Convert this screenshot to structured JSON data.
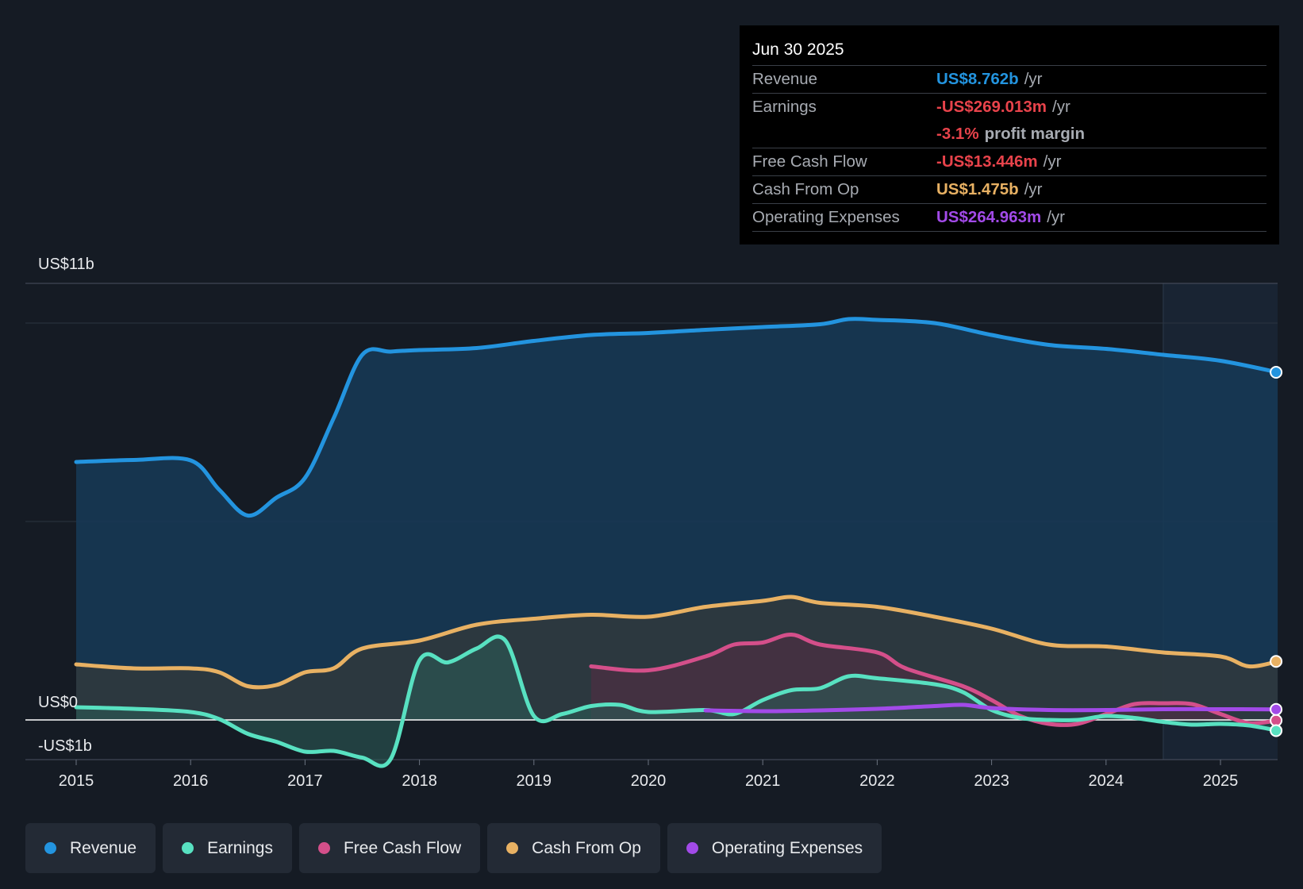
{
  "tooltip": {
    "date": "Jun 30 2025",
    "revenue_label": "Revenue",
    "revenue_value": "US$8.762b",
    "revenue_unit": "/yr",
    "earnings_label": "Earnings",
    "earnings_value": "-US$269.013m",
    "earnings_unit": "/yr",
    "margin_value": "-3.1%",
    "margin_unit": "profit margin",
    "fcf_label": "Free Cash Flow",
    "fcf_value": "-US$13.446m",
    "fcf_unit": "/yr",
    "cfo_label": "Cash From Op",
    "cfo_value": "US$1.475b",
    "cfo_unit": "/yr",
    "opex_label": "Operating Expenses",
    "opex_value": "US$264.963m",
    "opex_unit": "/yr"
  },
  "legend": [
    {
      "label": "Revenue",
      "color": "#2394df"
    },
    {
      "label": "Earnings",
      "color": "#58e1c1"
    },
    {
      "label": "Free Cash Flow",
      "color": "#d44f8a"
    },
    {
      "label": "Cash From Op",
      "color": "#e8b163"
    },
    {
      "label": "Operating Expenses",
      "color": "#a24ae8"
    }
  ],
  "chart_data": {
    "type": "area",
    "title": "",
    "x_unit": "year",
    "xlim": [
      2014.55,
      2025.5
    ],
    "ylim": [
      -1.0,
      11.0
    ],
    "y_top_label": "US$11b",
    "y_zero_label": "US$0",
    "y_bottom_label": "-US$1b",
    "gridlines": [
      10,
      5
    ],
    "forecast_start": 2024.5,
    "x_ticks": [
      {
        "x": 2015,
        "label": "2015"
      },
      {
        "x": 2016,
        "label": "2016"
      },
      {
        "x": 2017,
        "label": "2017"
      },
      {
        "x": 2018,
        "label": "2018"
      },
      {
        "x": 2019,
        "label": "2019"
      },
      {
        "x": 2020,
        "label": "2020"
      },
      {
        "x": 2021,
        "label": "2021"
      },
      {
        "x": 2022,
        "label": "2022"
      },
      {
        "x": 2023,
        "label": "2023"
      },
      {
        "x": 2024,
        "label": "2024"
      },
      {
        "x": 2025,
        "label": "2025"
      }
    ],
    "series": [
      {
        "name": "Revenue",
        "color": "#2394df",
        "fill": "#163957",
        "fill_opacity": 0.85,
        "points": [
          [
            2015,
            6.5
          ],
          [
            2015.5,
            6.55
          ],
          [
            2016,
            6.54
          ],
          [
            2016.25,
            5.8
          ],
          [
            2016.5,
            5.15
          ],
          [
            2016.75,
            5.6
          ],
          [
            2017,
            6.1
          ],
          [
            2017.25,
            7.6
          ],
          [
            2017.5,
            9.2
          ],
          [
            2017.75,
            9.28
          ],
          [
            2018,
            9.32
          ],
          [
            2018.5,
            9.37
          ],
          [
            2019,
            9.55
          ],
          [
            2019.5,
            9.7
          ],
          [
            2020,
            9.75
          ],
          [
            2020.5,
            9.83
          ],
          [
            2021,
            9.9
          ],
          [
            2021.5,
            9.97
          ],
          [
            2021.75,
            10.1
          ],
          [
            2022,
            10.08
          ],
          [
            2022.5,
            10.0
          ],
          [
            2023,
            9.7
          ],
          [
            2023.5,
            9.45
          ],
          [
            2024,
            9.35
          ],
          [
            2024.5,
            9.2
          ],
          [
            2025,
            9.05
          ],
          [
            2025.5,
            8.76
          ]
        ]
      },
      {
        "name": "Cash From Op",
        "color": "#e8b163",
        "fill": "#3c3a35",
        "fill_opacity": 0.6,
        "points": [
          [
            2015,
            1.4
          ],
          [
            2015.5,
            1.3
          ],
          [
            2016,
            1.3
          ],
          [
            2016.25,
            1.2
          ],
          [
            2016.5,
            0.85
          ],
          [
            2016.75,
            0.88
          ],
          [
            2017,
            1.2
          ],
          [
            2017.25,
            1.3
          ],
          [
            2017.5,
            1.8
          ],
          [
            2018,
            2.0
          ],
          [
            2018.5,
            2.4
          ],
          [
            2019,
            2.55
          ],
          [
            2019.5,
            2.65
          ],
          [
            2020,
            2.6
          ],
          [
            2020.5,
            2.85
          ],
          [
            2021,
            3.0
          ],
          [
            2021.25,
            3.1
          ],
          [
            2021.5,
            2.95
          ],
          [
            2022,
            2.85
          ],
          [
            2022.5,
            2.6
          ],
          [
            2023,
            2.3
          ],
          [
            2023.5,
            1.9
          ],
          [
            2024,
            1.85
          ],
          [
            2024.5,
            1.7
          ],
          [
            2025,
            1.6
          ],
          [
            2025.25,
            1.35
          ],
          [
            2025.5,
            1.475
          ]
        ]
      },
      {
        "name": "Free Cash Flow",
        "color": "#d44f8a",
        "fill": "#5a2a43",
        "fill_opacity": 0.5,
        "points": [
          [
            2019.5,
            1.35
          ],
          [
            2020,
            1.25
          ],
          [
            2020.5,
            1.6
          ],
          [
            2020.75,
            1.9
          ],
          [
            2021,
            1.95
          ],
          [
            2021.25,
            2.15
          ],
          [
            2021.5,
            1.9
          ],
          [
            2022,
            1.7
          ],
          [
            2022.25,
            1.3
          ],
          [
            2022.75,
            0.85
          ],
          [
            2023,
            0.5
          ],
          [
            2023.25,
            0.1
          ],
          [
            2023.5,
            -0.1
          ],
          [
            2023.75,
            -0.1
          ],
          [
            2024,
            0.15
          ],
          [
            2024.25,
            0.4
          ],
          [
            2024.5,
            0.42
          ],
          [
            2024.75,
            0.4
          ],
          [
            2025,
            0.15
          ],
          [
            2025.25,
            -0.08
          ],
          [
            2025.5,
            -0.013
          ]
        ]
      },
      {
        "name": "Earnings",
        "color": "#58e1c1",
        "fill": "#2c5a55",
        "fill_opacity": 0.6,
        "points": [
          [
            2015,
            0.32
          ],
          [
            2015.5,
            0.28
          ],
          [
            2016,
            0.2
          ],
          [
            2016.25,
            0.02
          ],
          [
            2016.5,
            -0.35
          ],
          [
            2016.75,
            -0.55
          ],
          [
            2017,
            -0.8
          ],
          [
            2017.25,
            -0.78
          ],
          [
            2017.5,
            -0.95
          ],
          [
            2017.75,
            -0.98
          ],
          [
            2018,
            1.5
          ],
          [
            2018.25,
            1.45
          ],
          [
            2018.5,
            1.8
          ],
          [
            2018.75,
            2.0
          ],
          [
            2019,
            0.1
          ],
          [
            2019.25,
            0.15
          ],
          [
            2019.5,
            0.35
          ],
          [
            2019.75,
            0.38
          ],
          [
            2020,
            0.2
          ],
          [
            2020.5,
            0.25
          ],
          [
            2020.75,
            0.15
          ],
          [
            2021,
            0.5
          ],
          [
            2021.25,
            0.75
          ],
          [
            2021.5,
            0.8
          ],
          [
            2021.75,
            1.1
          ],
          [
            2022,
            1.05
          ],
          [
            2022.5,
            0.9
          ],
          [
            2022.75,
            0.7
          ],
          [
            2023,
            0.25
          ],
          [
            2023.25,
            0.05
          ],
          [
            2023.5,
            0.0
          ],
          [
            2023.75,
            0.0
          ],
          [
            2024,
            0.1
          ],
          [
            2024.25,
            0.05
          ],
          [
            2024.5,
            -0.05
          ],
          [
            2024.75,
            -0.12
          ],
          [
            2025,
            -0.1
          ],
          [
            2025.25,
            -0.14
          ],
          [
            2025.5,
            -0.269
          ]
        ]
      },
      {
        "name": "Operating Expenses",
        "color": "#a24ae8",
        "fill": "none",
        "fill_opacity": 0,
        "points": [
          [
            2020.5,
            0.24
          ],
          [
            2021,
            0.22
          ],
          [
            2021.5,
            0.24
          ],
          [
            2022,
            0.28
          ],
          [
            2022.5,
            0.35
          ],
          [
            2022.75,
            0.38
          ],
          [
            2023,
            0.3
          ],
          [
            2023.5,
            0.25
          ],
          [
            2024,
            0.25
          ],
          [
            2024.5,
            0.27
          ],
          [
            2025,
            0.27
          ],
          [
            2025.5,
            0.265
          ]
        ]
      }
    ]
  }
}
